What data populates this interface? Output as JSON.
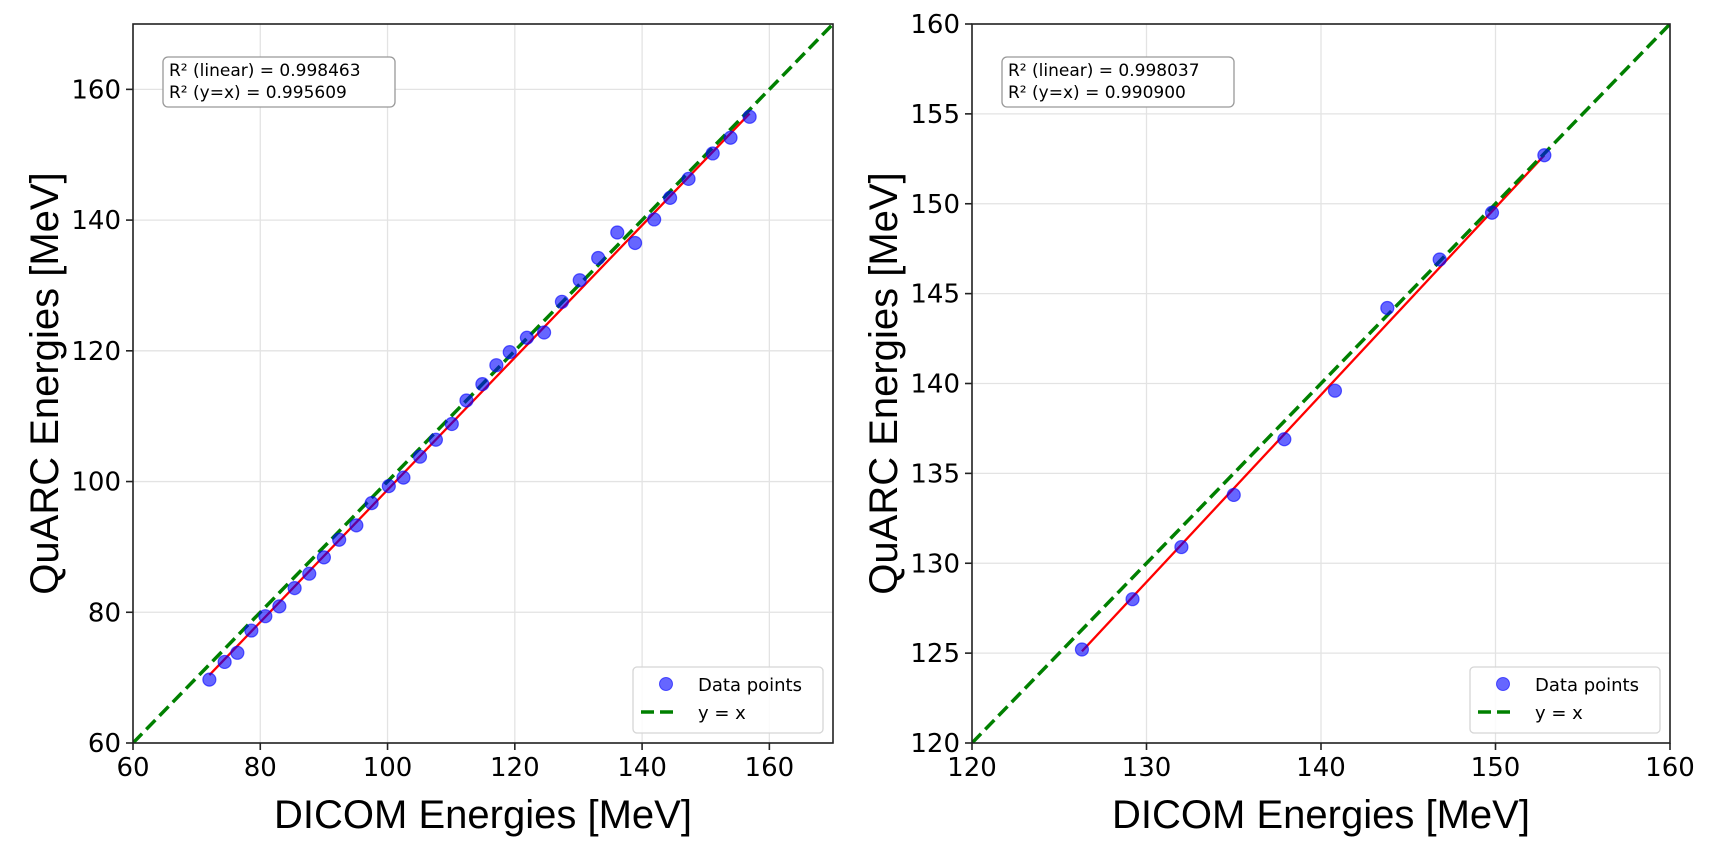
{
  "chart_data": [
    {
      "type": "scatter",
      "xlabel": "DICOM Energies [MeV]",
      "ylabel": "QuARC Energies [MeV]",
      "xlim": [
        60,
        170
      ],
      "ylim": [
        60,
        170
      ],
      "xticks": [
        60,
        80,
        100,
        120,
        140,
        160
      ],
      "yticks": [
        60,
        80,
        100,
        120,
        140,
        160
      ],
      "grid": true,
      "stats": [
        "R² (linear) = 0.998463",
        "R² (y=x) = 0.995609"
      ],
      "stats_placement": "top-left",
      "legend": {
        "placement": "bottom-right",
        "entries": [
          "Data points",
          "y = x"
        ]
      },
      "series": [
        {
          "name": "Data points",
          "kind": "scatter",
          "color": "#0000ff",
          "x": [
            72.0,
            74.4,
            76.4,
            78.6,
            80.8,
            83.0,
            85.4,
            87.7,
            90.0,
            92.4,
            95.1,
            97.5,
            100.2,
            102.5,
            105.1,
            107.6,
            110.1,
            112.4,
            114.9,
            117.1,
            119.2,
            121.9,
            124.6,
            127.4,
            130.2,
            133.1,
            136.1,
            138.9,
            141.9,
            144.4,
            147.3,
            151.1,
            153.9,
            156.9
          ],
          "y": [
            69.7,
            72.4,
            73.8,
            77.2,
            79.4,
            80.9,
            83.7,
            85.9,
            88.4,
            91.1,
            93.3,
            96.7,
            99.3,
            100.6,
            103.8,
            106.4,
            108.8,
            112.4,
            114.9,
            117.8,
            119.8,
            122.0,
            122.8,
            127.5,
            130.8,
            134.2,
            138.1,
            136.5,
            140.1,
            143.4,
            146.3,
            150.2,
            152.6,
            155.8
          ]
        },
        {
          "name": "Linear fit",
          "kind": "line",
          "color": "#ff0000",
          "x": [
            72.0,
            156.9
          ],
          "y": [
            70.4,
            156.3
          ]
        },
        {
          "name": "y = x",
          "kind": "dashed-line",
          "color": "#008000",
          "x": [
            60,
            170
          ],
          "y": [
            60,
            170
          ]
        }
      ]
    },
    {
      "type": "scatter",
      "xlabel": "DICOM Energies [MeV]",
      "ylabel": "QuARC Energies [MeV]",
      "xlim": [
        120,
        160
      ],
      "ylim": [
        120,
        160
      ],
      "xticks": [
        120,
        130,
        140,
        150,
        160
      ],
      "yticks": [
        120,
        125,
        130,
        135,
        140,
        145,
        150,
        155,
        160
      ],
      "grid": true,
      "stats": [
        "R² (linear) = 0.998037",
        "R² (y=x) = 0.990900"
      ],
      "stats_placement": "top-left",
      "legend": {
        "placement": "bottom-right",
        "entries": [
          "Data points",
          "y = x"
        ]
      },
      "series": [
        {
          "name": "Data points",
          "kind": "scatter",
          "color": "#0000ff",
          "x": [
            126.3,
            129.2,
            132.0,
            135.0,
            137.9,
            140.8,
            143.8,
            146.8,
            149.8,
            152.8
          ],
          "y": [
            125.2,
            128.0,
            130.9,
            133.8,
            136.9,
            139.6,
            144.2,
            146.9,
            149.5,
            152.7
          ]
        },
        {
          "name": "Linear fit",
          "kind": "line",
          "color": "#ff0000",
          "x": [
            126.3,
            152.8
          ],
          "y": [
            125.1,
            152.7
          ]
        },
        {
          "name": "y = x",
          "kind": "dashed-line",
          "color": "#008000",
          "x": [
            120,
            160
          ],
          "y": [
            120,
            160
          ]
        }
      ]
    }
  ]
}
